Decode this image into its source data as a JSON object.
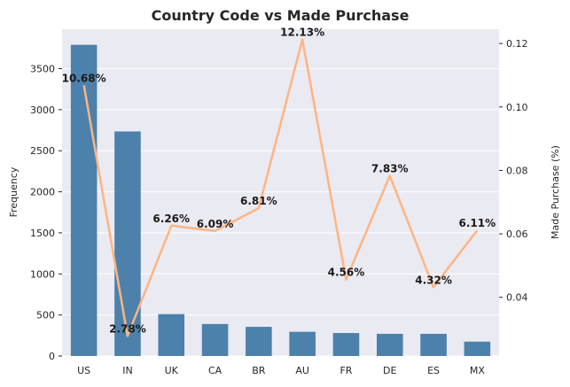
{
  "chart_data": {
    "type": "bar",
    "title": "Country Code vs Made Purchase",
    "xlabel": "",
    "ylabel": "Frequency",
    "y2label": "Made Purchase (%)",
    "categories": [
      "US",
      "IN",
      "UK",
      "CA",
      "BR",
      "AU",
      "FR",
      "DE",
      "ES",
      "MX"
    ],
    "ylim": [
      0,
      3980
    ],
    "y2lim": [
      0.0215,
      0.1245
    ],
    "yticks": [
      0,
      500,
      1000,
      1500,
      2000,
      2500,
      3000,
      3500
    ],
    "y2ticks": [
      0.04,
      0.06,
      0.08,
      0.1,
      0.12
    ],
    "y2tick_labels": [
      "0.04",
      "0.06",
      "0.08",
      "0.10",
      "0.12"
    ],
    "grid": true,
    "series": [
      {
        "type": "bar",
        "axis": "left",
        "color": "#4c81ab",
        "values": [
          3790,
          2735,
          510,
          390,
          355,
          295,
          280,
          270,
          270,
          175
        ]
      },
      {
        "type": "line",
        "axis": "right",
        "color": "#ffb482",
        "values": [
          0.1068,
          0.0278,
          0.0626,
          0.0609,
          0.0681,
          0.1213,
          0.0456,
          0.0783,
          0.0432,
          0.0611
        ],
        "labels": [
          "10.68%",
          "2.78%",
          "6.26%",
          "6.09%",
          "6.81%",
          "12.13%",
          "4.56%",
          "7.83%",
          "4.32%",
          "6.11%"
        ]
      }
    ]
  }
}
